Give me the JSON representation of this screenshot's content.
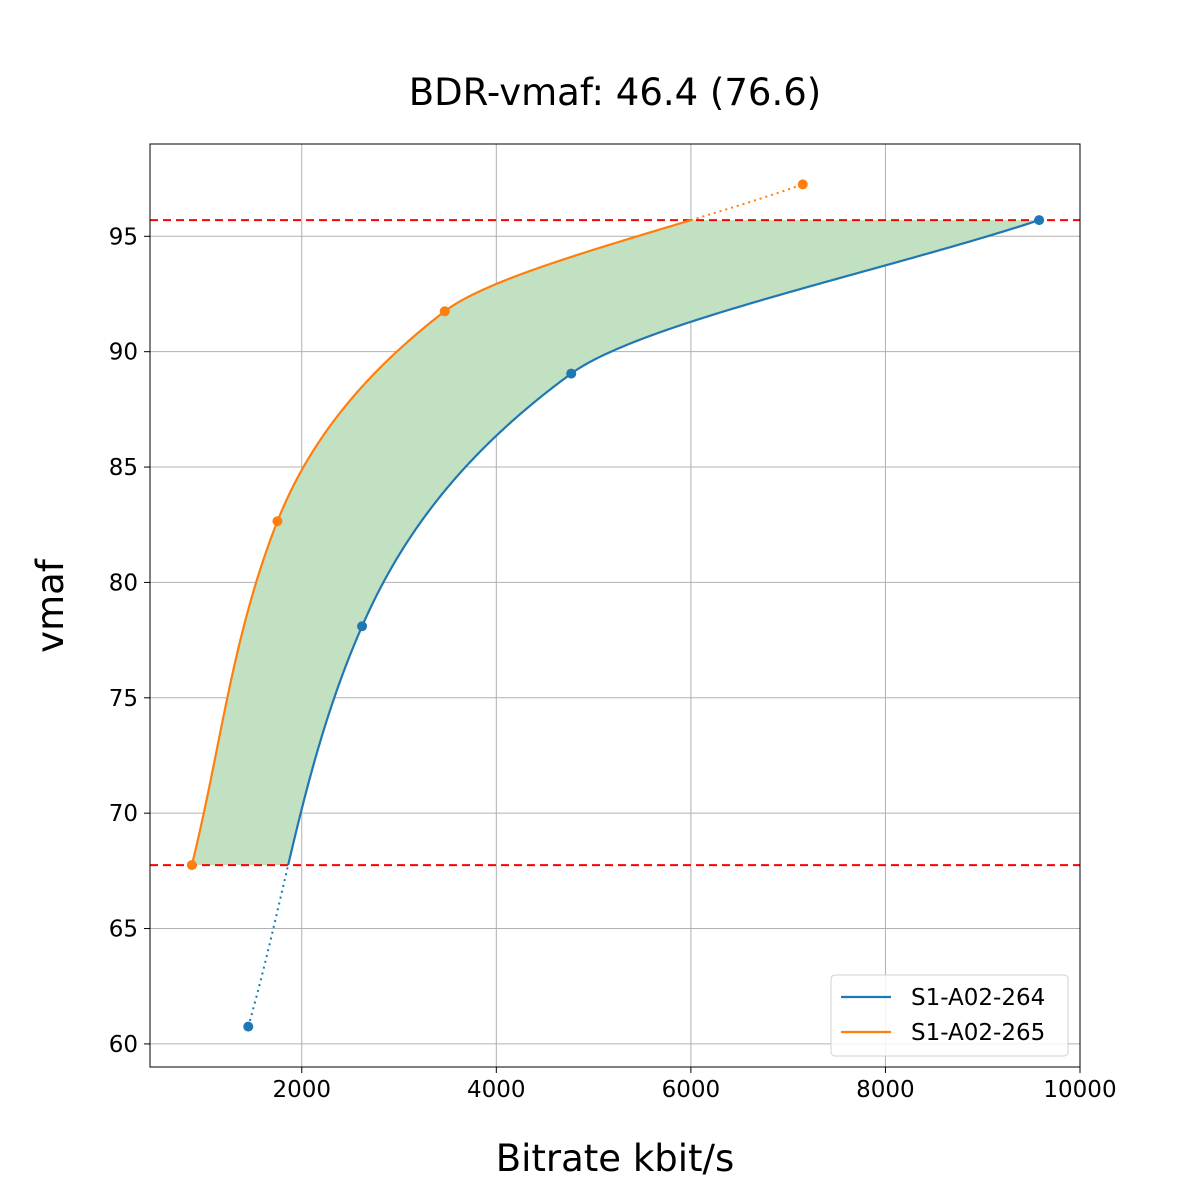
{
  "chart_data": {
    "type": "line",
    "title": "BDR-vmaf: 46.4 (76.6)",
    "xlabel": "Bitrate kbit/s",
    "ylabel": "vmaf",
    "xlim": [
      440,
      10000
    ],
    "ylim": [
      59,
      99
    ],
    "xticks": [
      2000,
      4000,
      6000,
      8000,
      10000
    ],
    "yticks": [
      60,
      65,
      70,
      75,
      80,
      85,
      90,
      95
    ],
    "grid": true,
    "legend_position": "lower right",
    "reference_lines": [
      {
        "axis": "y",
        "value": 95.7,
        "style": "dashed",
        "color": "#ff0000"
      },
      {
        "axis": "y",
        "value": 67.75,
        "style": "dashed",
        "color": "#ff0000"
      }
    ],
    "fill_color": "#c2e0c2",
    "series": [
      {
        "name": "S1-A02-264",
        "color": "#1f77b4",
        "points": [
          {
            "x": 1450,
            "y": 60.75
          },
          {
            "x": 2620,
            "y": 78.1
          },
          {
            "x": 4770,
            "y": 89.05
          },
          {
            "x": 9580,
            "y": 95.7
          }
        ]
      },
      {
        "name": "S1-A02-265",
        "color": "#ff7f0e",
        "points": [
          {
            "x": 870,
            "y": 67.75
          },
          {
            "x": 1750,
            "y": 82.65
          },
          {
            "x": 3470,
            "y": 91.75
          },
          {
            "x": 7150,
            "y": 97.25
          }
        ]
      }
    ]
  }
}
